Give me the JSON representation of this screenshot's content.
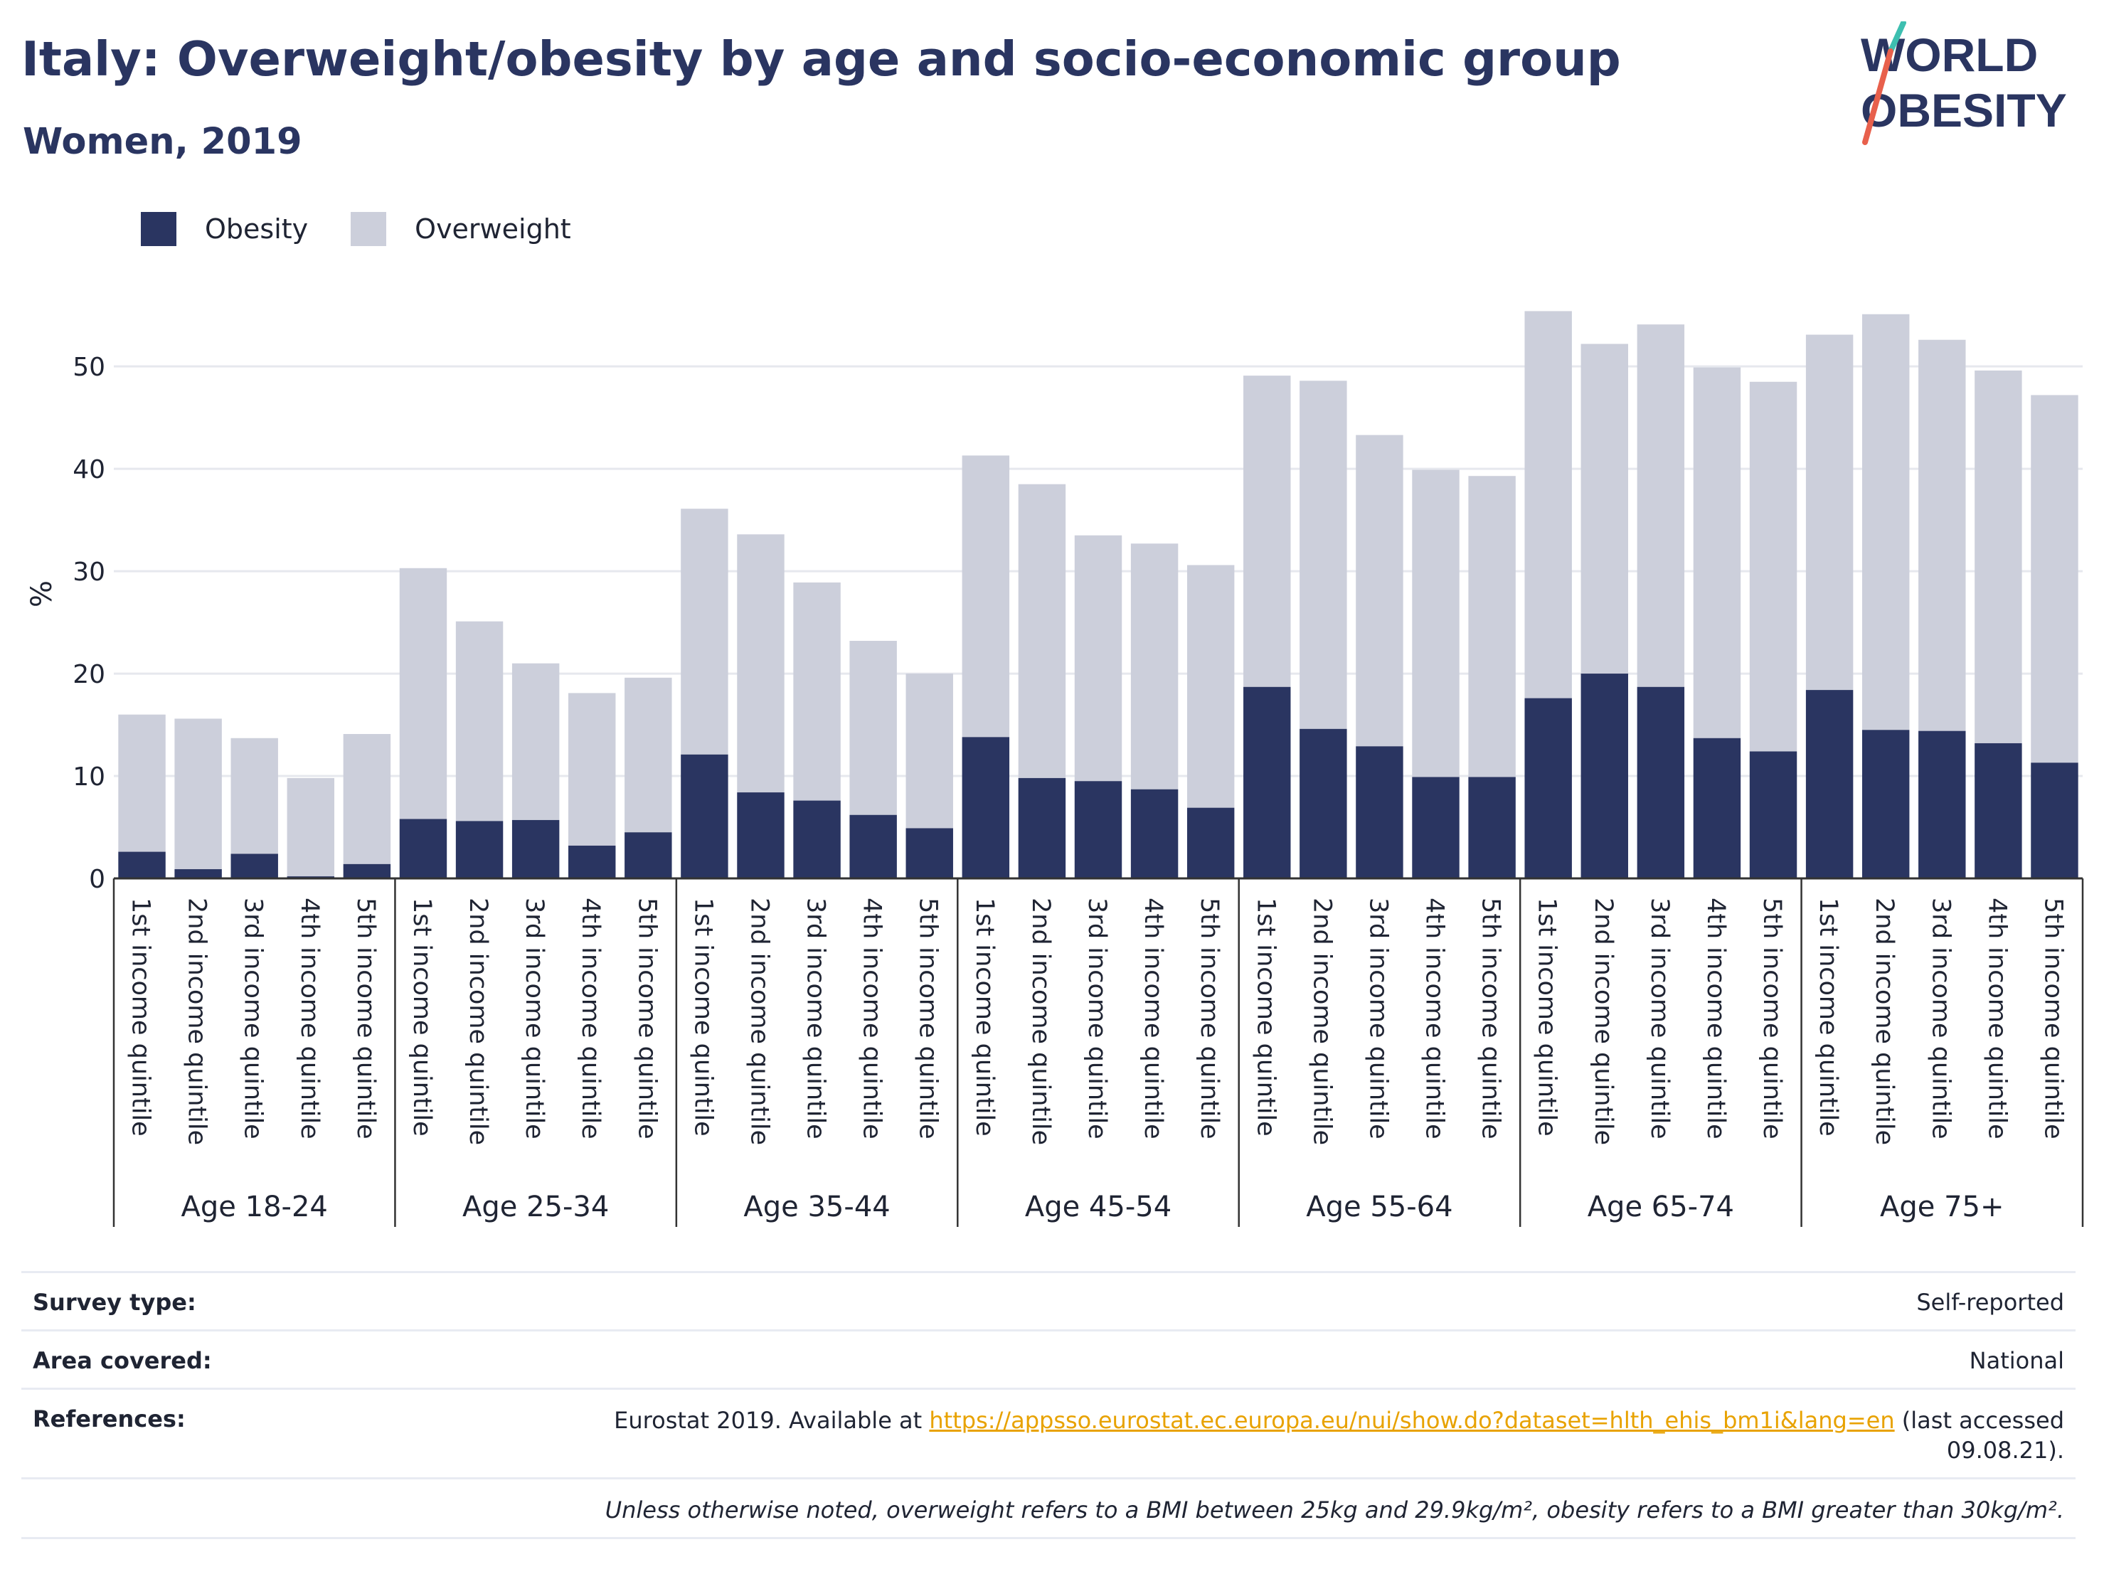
{
  "header": {
    "title": "Italy: Overweight/obesity by age and socio-economic group",
    "subtitle": "Women, 2019"
  },
  "logo": {
    "line1": "WORLD",
    "line2": "OBESITY"
  },
  "colors": {
    "obesity": "#2a3561",
    "overweight": "#cccfdb",
    "grid": "#e6e8ee",
    "axis": "#333333"
  },
  "chart_data": {
    "type": "bar",
    "stacked": true,
    "ylabel": "%",
    "ylim": [
      0,
      58
    ],
    "yticks": [
      0,
      10,
      20,
      30,
      40,
      50
    ],
    "legend": {
      "placement": "top-left"
    },
    "groups": [
      "Age 18-24",
      "Age 25-34",
      "Age 35-44",
      "Age 45-54",
      "Age 55-64",
      "Age 65-74",
      "Age 75+"
    ],
    "categories": [
      "1st income quintile",
      "2nd income quintile",
      "3rd income quintile",
      "4th income quintile",
      "5th income quintile"
    ],
    "series": [
      {
        "name": "Obesity",
        "values": [
          [
            2.6,
            0.9,
            2.4,
            0.2,
            1.4
          ],
          [
            5.8,
            5.6,
            5.7,
            3.2,
            4.5
          ],
          [
            12.1,
            8.4,
            7.6,
            6.2,
            4.9
          ],
          [
            13.8,
            9.8,
            9.5,
            8.7,
            6.9
          ],
          [
            18.7,
            14.6,
            12.9,
            9.9,
            9.9
          ],
          [
            17.6,
            20.0,
            18.7,
            13.7,
            12.4
          ],
          [
            18.4,
            14.5,
            14.4,
            13.2,
            11.3
          ]
        ]
      },
      {
        "name": "Overweight",
        "values": [
          [
            13.4,
            14.7,
            11.3,
            9.6,
            12.7
          ],
          [
            24.5,
            19.5,
            15.3,
            14.9,
            15.1
          ],
          [
            24.0,
            25.2,
            21.3,
            17.0,
            15.1
          ],
          [
            27.5,
            28.7,
            24.0,
            24.0,
            23.7
          ],
          [
            30.4,
            34.0,
            30.4,
            30.0,
            29.4
          ],
          [
            37.8,
            32.2,
            35.4,
            36.2,
            36.1
          ],
          [
            34.7,
            40.6,
            38.2,
            36.4,
            35.9
          ]
        ]
      }
    ]
  },
  "meta": {
    "survey_label": "Survey type:",
    "survey_value": "Self-reported",
    "area_label": "Area covered:",
    "area_value": "National",
    "ref_label": "References:",
    "ref_prefix": "Eurostat 2019. Available at ",
    "ref_link": "https://appsso.eurostat.ec.europa.eu/nui/show.do?dataset=hlth_ehis_bm1i&lang=en",
    "ref_suffix": " (last accessed",
    "ref_date": "09.08.21).",
    "note": "Unless otherwise noted, overweight refers to a BMI between 25kg and 29.9kg/m², obesity refers to a BMI greater than 30kg/m²."
  }
}
